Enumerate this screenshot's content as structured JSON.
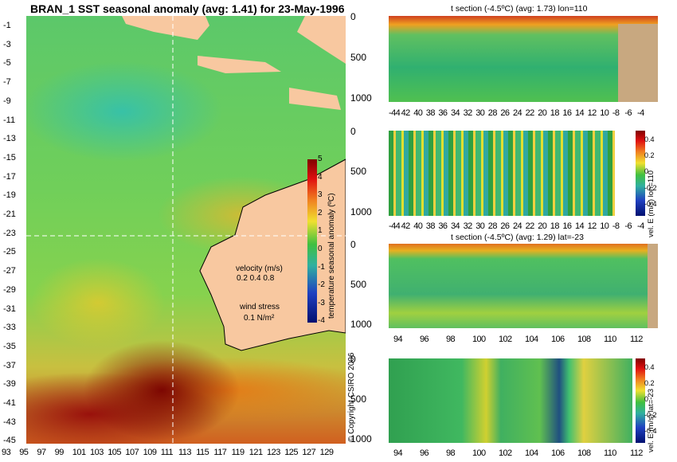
{
  "main_title": "BRAN_1 SST seasonal anomaly (avg: 1.41) for 23-May-1996",
  "map": {
    "y_ticks": [
      "-1",
      "-3",
      "-5",
      "-7",
      "-9",
      "-11",
      "-13",
      "-15",
      "-17",
      "-19",
      "-21",
      "-23",
      "-25",
      "-27",
      "-29",
      "-31",
      "-33",
      "-35",
      "-37",
      "-39",
      "-41",
      "-43",
      "-45"
    ],
    "x_ticks": [
      "93",
      "95",
      "97",
      "99",
      "101",
      "103",
      "105",
      "107",
      "109",
      "111",
      "113",
      "115",
      "117",
      "119",
      "121",
      "123",
      "125",
      "127",
      "129"
    ],
    "colorbar_ticks": [
      "5",
      "4",
      "3",
      "2",
      "1",
      "0",
      "-1",
      "-2",
      "-3",
      "-4"
    ],
    "colorbar_label": "temperature seasonal anomaly (ºC)",
    "velocity_label": "velocity (m/s)",
    "velocity_scale": "0.2 0.4 0.8",
    "wind_label": "wind stress",
    "wind_scale": "0.1 N/m²",
    "copyright": "© Copyright CSIRO 2006"
  },
  "panels": [
    {
      "title": "t section (-4.5ºC) (avg: 1.73) lon=110",
      "y_ticks": [
        "0",
        "500",
        "1000"
      ],
      "x_ticks": [
        "-44",
        "42",
        "40",
        "38",
        "36",
        "34",
        "32",
        "30",
        "28",
        "26",
        "24",
        "22",
        "20",
        "18",
        "16",
        "14",
        "12",
        "10",
        "-8",
        "-6",
        "-4"
      ]
    },
    {
      "title": "",
      "y_ticks": [
        "0",
        "500",
        "1000"
      ],
      "x_ticks": [
        "-44",
        "42",
        "40",
        "38",
        "36",
        "34",
        "32",
        "30",
        "28",
        "26",
        "24",
        "22",
        "20",
        "18",
        "16",
        "14",
        "12",
        "10",
        "-8",
        "-6",
        "-4"
      ],
      "cb_ticks": [
        "0.4",
        "0.2",
        "0",
        "-0.2",
        "-0.4"
      ],
      "cb_label": "vel. E (m/s) lon=110"
    },
    {
      "title": "t section (-4.5ºC) (avg: 1.29) lat=-23",
      "y_ticks": [
        "0",
        "500",
        "1000"
      ],
      "x_ticks": [
        "94",
        "96",
        "98",
        "100",
        "102",
        "104",
        "106",
        "108",
        "110",
        "112"
      ]
    },
    {
      "title": "",
      "y_ticks": [
        "0",
        "500",
        "1000"
      ],
      "x_ticks": [
        "94",
        "96",
        "98",
        "100",
        "102",
        "104",
        "106",
        "108",
        "110",
        "112"
      ],
      "cb_ticks": [
        "0.4",
        "0.2",
        "0",
        "-0.2",
        "-0.4"
      ],
      "cb_label": "vel. E (m/s) lat=-23"
    }
  ]
}
